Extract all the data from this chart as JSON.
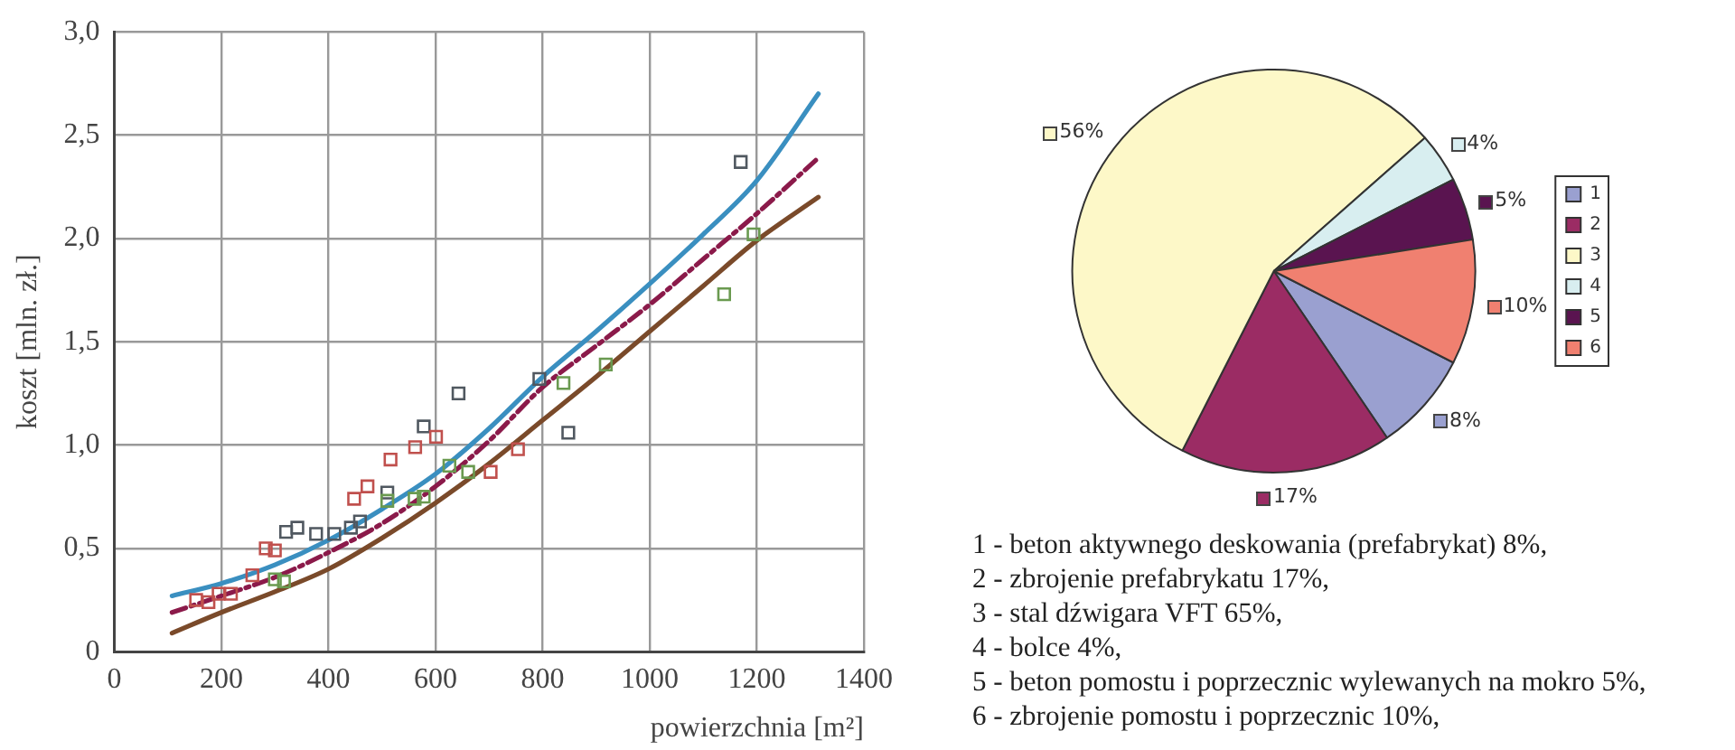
{
  "chart_data": [
    {
      "type": "scatter",
      "xlabel": "powierzchnia [m²]",
      "ylabel": "koszt [mln. zł.]",
      "xlim": [
        0,
        1400
      ],
      "ylim": [
        0,
        3
      ],
      "xticks": [
        0,
        200,
        400,
        600,
        800,
        1000,
        1200,
        1400
      ],
      "yticks": [
        0,
        {
          "value": 0.5,
          "label": "0,5"
        },
        {
          "value": 1,
          "label": "1,0"
        },
        {
          "value": 1.5,
          "label": "1,5"
        },
        {
          "value": 2,
          "label": "2,0"
        },
        {
          "value": 2.5,
          "label": "2,5"
        },
        {
          "value": 3,
          "label": "3,0"
        }
      ],
      "grid": true,
      "legend": false,
      "series": [
        {
          "type": "scatter",
          "marker": "square",
          "color": "#c0504d",
          "x": [
            153,
            176,
            195,
            218,
            258,
            283,
            300,
            448,
            473,
            516,
            562,
            601,
            703,
            754
          ],
          "values": [
            0.25,
            0.24,
            0.28,
            0.28,
            0.37,
            0.5,
            0.49,
            0.74,
            0.8,
            0.93,
            0.99,
            1.04,
            0.87,
            0.98
          ]
        },
        {
          "type": "scatter",
          "marker": "square",
          "color": "#6a9a50",
          "x": [
            300,
            317,
            510,
            561,
            578,
            626,
            661,
            839,
            918,
            1139,
            1194
          ],
          "values": [
            0.35,
            0.34,
            0.73,
            0.74,
            0.75,
            0.9,
            0.87,
            1.3,
            1.39,
            1.73,
            2.02
          ]
        },
        {
          "type": "scatter",
          "marker": "square",
          "color": "#505860",
          "x": [
            321,
            342,
            377,
            411,
            442,
            459,
            510,
            578,
            643,
            794,
            848,
            1170
          ],
          "values": [
            0.58,
            0.6,
            0.57,
            0.57,
            0.6,
            0.63,
            0.77,
            1.09,
            1.25,
            1.32,
            1.06,
            2.37
          ]
        },
        {
          "type": "line",
          "marker": "none",
          "line_style": "solid",
          "color": "#3a8fc0",
          "x": [
            108,
            200,
            300,
            400,
            500,
            600,
            700,
            800,
            900,
            1000,
            1100,
            1200,
            1315
          ],
          "values": [
            0.27,
            0.33,
            0.42,
            0.54,
            0.69,
            0.86,
            1.08,
            1.33,
            1.55,
            1.78,
            2.02,
            2.28,
            2.7
          ]
        },
        {
          "type": "line",
          "marker": "none",
          "line_style": "dashed",
          "color": "#8b1a4a",
          "x": [
            108,
            200,
            300,
            400,
            500,
            600,
            700,
            800,
            900,
            1000,
            1100,
            1200,
            1315
          ],
          "values": [
            0.19,
            0.27,
            0.36,
            0.48,
            0.62,
            0.8,
            1.02,
            1.28,
            1.48,
            1.68,
            1.9,
            2.12,
            2.39
          ]
        },
        {
          "type": "line",
          "marker": "none",
          "line_style": "solid",
          "color": "#7a4a2a",
          "x": [
            108,
            200,
            300,
            400,
            500,
            600,
            700,
            800,
            900,
            1000,
            1100,
            1200,
            1315
          ],
          "values": [
            0.09,
            0.19,
            0.29,
            0.4,
            0.55,
            0.72,
            0.91,
            1.12,
            1.33,
            1.55,
            1.77,
            1.99,
            2.2
          ]
        }
      ]
    },
    {
      "type": "pie",
      "categories": [
        "1",
        "2",
        "3",
        "4",
        "5",
        "6"
      ],
      "values": [
        8,
        17,
        56,
        4,
        5,
        10
      ],
      "colors": [
        "#9aa0d0",
        "#9b2c64",
        "#fdf8c8",
        "#d8eef0",
        "#5a1450",
        "#f08070"
      ],
      "value_labels": [
        "8%",
        "17%",
        "56%",
        "4%",
        "5%",
        "10%"
      ],
      "legend": "right",
      "annotations": [
        "1 - beton aktywnego deskowania (prefabrykat) 8%,",
        "2 - zbrojenie prefabrykatu 17%,",
        "3 - stal dźwigara VFT 65%,",
        "4 - bolce 4%,",
        "5 - beton pomostu i poprzecznic wylewanych na mokro 5%,",
        "6 - zbrojenie pomostu i poprzecznic 10%,"
      ]
    }
  ]
}
